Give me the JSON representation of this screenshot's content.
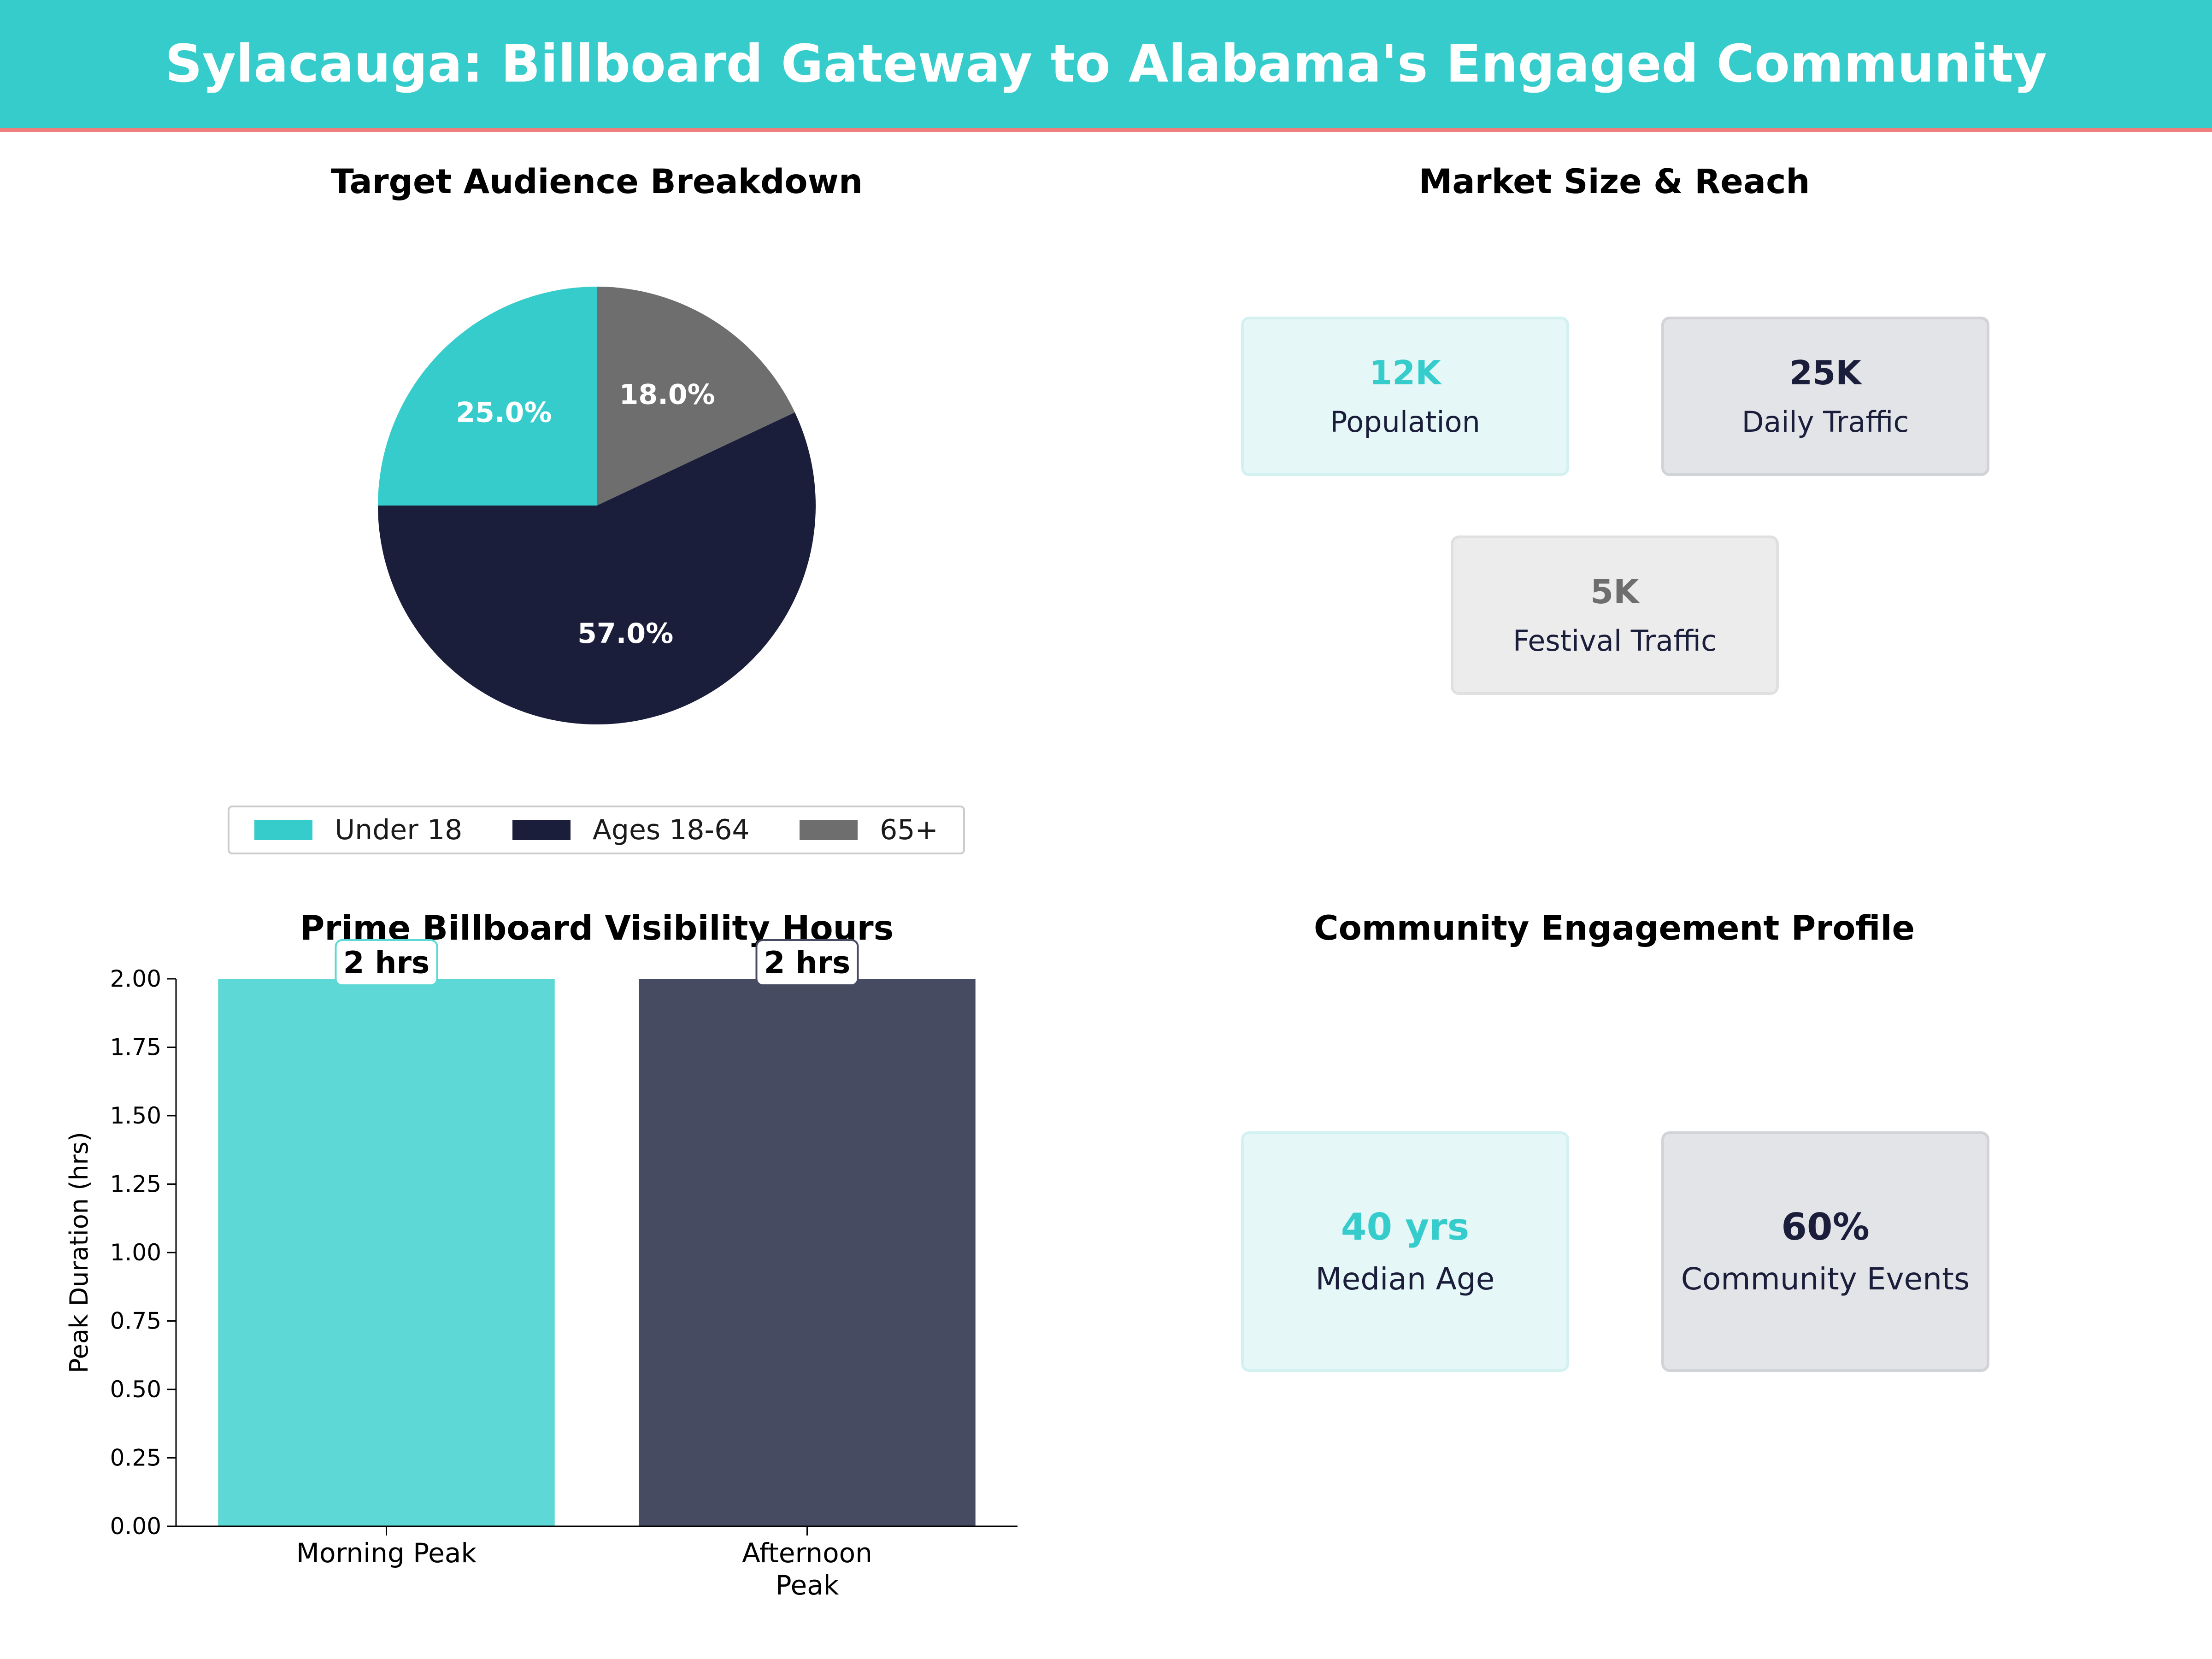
{
  "title": "Sylacauga: Billboard Gateway to Alabama's Engaged Community",
  "colors": {
    "banner": "#36cccc",
    "banner_rule": "#ef7f7f",
    "teal": "#36cccc",
    "navy": "#1b1e3b",
    "gray": "#6e6e6e"
  },
  "chart_data": [
    {
      "type": "pie",
      "title": "Target Audience Breakdown",
      "labels": [
        "Under 18",
        "Ages 18-64",
        "65+"
      ],
      "values": [
        25.0,
        57.0,
        18.0
      ],
      "value_labels": [
        "25.0%",
        "57.0%",
        "18.0%"
      ],
      "colors": [
        "#36cccc",
        "#1b1e3b",
        "#6e6e6e"
      ],
      "legend": "bottom-center"
    },
    {
      "type": "bar",
      "title": "Prime Billboard Visibility Hours",
      "categories": [
        "Morning Peak",
        "Afternoon\nPeak"
      ],
      "values": [
        2,
        2
      ],
      "data_labels": [
        "2 hrs",
        "2 hrs"
      ],
      "colors": [
        "#5ed8d6",
        "#464b62"
      ],
      "ylabel": "Peak Duration (hrs)",
      "ylim": [
        0,
        2.0
      ],
      "yticks": [
        "0.00",
        "0.25",
        "0.50",
        "0.75",
        "1.00",
        "1.25",
        "1.50",
        "1.75",
        "2.00"
      ],
      "grid": false
    }
  ],
  "market": {
    "title": "Market Size & Reach",
    "cards": [
      {
        "value": "12K",
        "label": "Population",
        "color": "#36cccc"
      },
      {
        "value": "25K",
        "label": "Daily Traffic",
        "color": "#1b1e3b"
      },
      {
        "value": "5K",
        "label": "Festival Traffic",
        "color": "#6e6e6e"
      }
    ]
  },
  "engagement": {
    "title": "Community Engagement Profile",
    "cards": [
      {
        "value": "40 yrs",
        "label": "Median Age",
        "color": "#36cccc"
      },
      {
        "value": "60%",
        "label": "Community Events",
        "color": "#1b1e3b"
      }
    ]
  }
}
